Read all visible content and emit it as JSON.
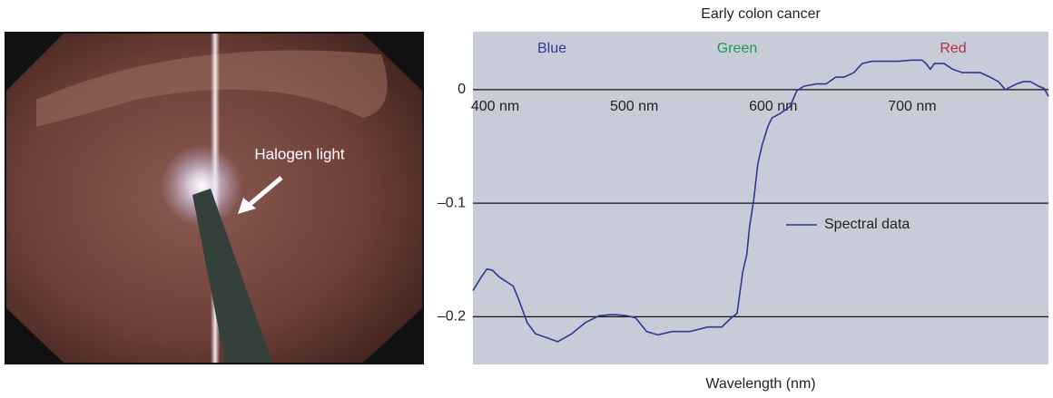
{
  "image_annotation": "Halogen light",
  "chart_data": {
    "type": "line",
    "title": "Early colon cancer",
    "x_label": "Wavelength (nm)",
    "annotations": [
      {
        "text": "Blue",
        "color": "#2e3a9e"
      },
      {
        "text": "Green",
        "color": "#1e9a5a"
      },
      {
        "text": "Red",
        "color": "#b0304a"
      }
    ],
    "x": [
      384,
      390,
      394,
      398,
      403,
      413,
      417,
      423,
      429,
      436,
      445,
      455,
      465,
      475,
      485,
      494,
      501,
      509,
      517,
      527,
      540,
      553,
      563,
      569,
      574,
      578,
      581,
      583,
      586,
      589,
      592,
      596,
      599,
      605,
      612,
      617,
      622,
      631,
      638,
      645,
      651,
      658,
      664,
      671,
      680,
      690,
      700,
      707,
      710,
      713,
      716,
      723,
      729,
      736,
      742,
      749,
      756,
      762,
      767,
      770,
      775,
      780,
      785,
      788,
      791,
      795,
      798
    ],
    "series": [
      {
        "name": "Spectral data",
        "color": "#2b3896",
        "values": [
          -0.177,
          -0.165,
          -0.158,
          -0.159,
          -0.165,
          -0.173,
          -0.185,
          -0.205,
          -0.215,
          -0.218,
          -0.222,
          -0.215,
          -0.205,
          -0.199,
          -0.198,
          -0.199,
          -0.201,
          -0.213,
          -0.216,
          -0.213,
          -0.213,
          -0.209,
          -0.209,
          -0.202,
          -0.197,
          -0.161,
          -0.145,
          -0.121,
          -0.097,
          -0.065,
          -0.049,
          -0.033,
          -0.025,
          -0.021,
          -0.015,
          -0.001,
          0.003,
          0.005,
          0.005,
          0.011,
          0.011,
          0.015,
          0.023,
          0.025,
          0.025,
          0.025,
          0.026,
          0.026,
          0.023,
          0.018,
          0.023,
          0.023,
          0.018,
          0.015,
          0.015,
          0.015,
          0.011,
          0.007,
          0,
          0.002,
          0.005,
          0.007,
          0.007,
          0.005,
          0.003,
          0.001,
          -0.006
        ]
      }
    ],
    "xlim": [
      384,
      798
    ],
    "xticks": [
      {
        "value": 400,
        "label": "400 nm"
      },
      {
        "value": 500,
        "label": "500 nm"
      },
      {
        "value": 600,
        "label": "600 nm"
      },
      {
        "value": 700,
        "label": "700 nm"
      }
    ],
    "ylim": [
      -0.242,
      0.051
    ],
    "yticks": [
      0,
      {
        "value": -0.1,
        "label": "–0.1"
      },
      {
        "value": -0.2,
        "label": "–0.2"
      }
    ],
    "grid": true,
    "legend": "right",
    "background": "#c8ccd8"
  }
}
